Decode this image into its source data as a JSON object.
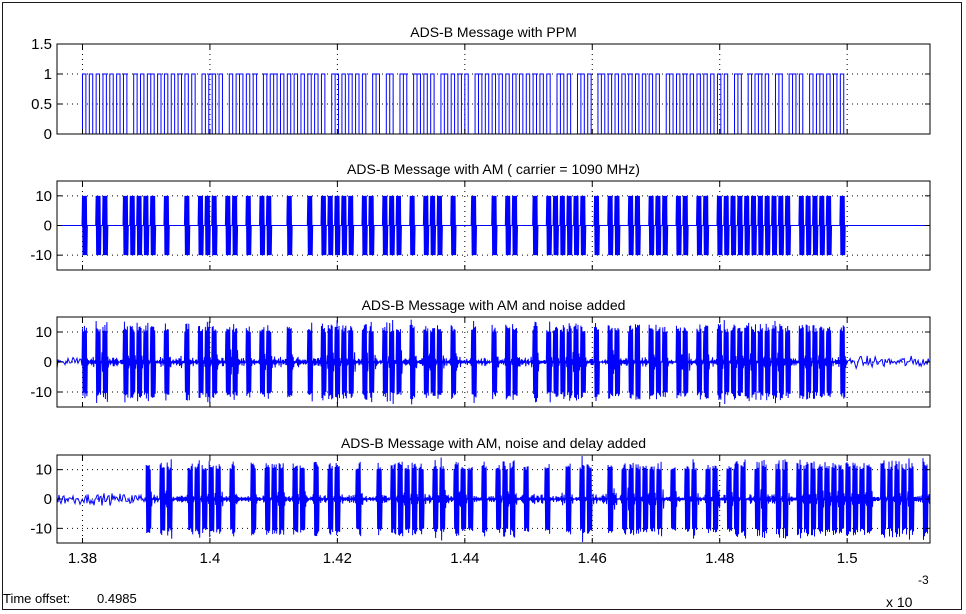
{
  "chart_data": [
    {
      "type": "line",
      "title": "ADS-B Message with PPM",
      "ylim": [
        0,
        1.5
      ],
      "yticks": [
        0,
        0.5,
        1,
        1.5
      ],
      "ytick_labels": [
        "0",
        "0.5",
        "1",
        "1.5"
      ],
      "grid": true,
      "signal": "ppm",
      "series": [
        {
          "color": "#0000ff",
          "x_start": 0.00138,
          "x_end": 0.0015,
          "low": 0,
          "high": 1
        }
      ]
    },
    {
      "type": "line",
      "title": "ADS-B Message with AM ( carrier = 1090 MHz)",
      "ylim": [
        -15,
        15
      ],
      "yticks": [
        -10,
        0,
        10
      ],
      "ytick_labels": [
        "-10",
        "0",
        "10"
      ],
      "grid": true,
      "signal": "am",
      "series": [
        {
          "color": "#0000ff",
          "x_start": 0.00138,
          "x_end": 0.0015,
          "amplitude": 10
        }
      ]
    },
    {
      "type": "line",
      "title": "ADS-B Message with AM and noise added",
      "ylim": [
        -15,
        15
      ],
      "yticks": [
        -10,
        0,
        10
      ],
      "ytick_labels": [
        "-10",
        "0",
        "10"
      ],
      "grid": true,
      "signal": "am-noise",
      "series": [
        {
          "color": "#0000ff",
          "x_start": 0.00138,
          "x_end": 0.0015,
          "amplitude": 10
        }
      ]
    },
    {
      "type": "line",
      "title": "ADS-B Message with AM, noise and delay added",
      "ylim": [
        -15,
        15
      ],
      "yticks": [
        -10,
        0,
        10
      ],
      "ytick_labels": [
        "-10",
        "0",
        "10"
      ],
      "grid": true,
      "signal": "am-noise-delay",
      "series": [
        {
          "color": "#0000ff",
          "x_start": 0.00139,
          "x_end": 0.001513,
          "amplitude": 10
        }
      ]
    }
  ],
  "x_axis": {
    "xlim": [
      0.001376,
      0.001513
    ],
    "xticks": [
      0.00138,
      0.0014,
      0.00142,
      0.00144,
      0.00146,
      0.00148,
      0.0015
    ],
    "xtick_labels": [
      "1.38",
      "1.4",
      "1.42",
      "1.44",
      "1.46",
      "1.48",
      "1.5"
    ],
    "exponent_base": "x 10",
    "exponent_power": "-3"
  },
  "footer": {
    "time_offset_label": "Time offset:",
    "time_offset_value": "0.4985"
  },
  "colors": {
    "signal": "#0000ff",
    "axes": "#000000",
    "grid": "#000000"
  }
}
